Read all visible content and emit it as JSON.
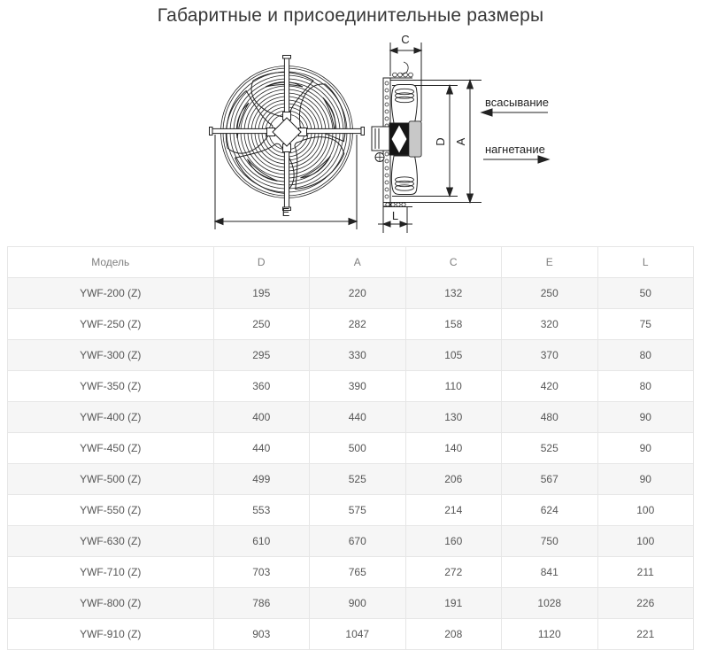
{
  "page": {
    "title": "Габаритные и присоединительные размеры"
  },
  "diagram": {
    "dims": {
      "c": "C",
      "d": "D",
      "a": "A",
      "e": "E",
      "l": "L"
    },
    "flow": {
      "suction": "всасывание",
      "discharge": "нагнетание"
    }
  },
  "table": {
    "headers": [
      "Модель",
      "D",
      "A",
      "C",
      "E",
      "L"
    ],
    "rows": [
      [
        "YWF-200 (Z)",
        "195",
        "220",
        "132",
        "250",
        "50"
      ],
      [
        "YWF-250 (Z)",
        "250",
        "282",
        "158",
        "320",
        "75"
      ],
      [
        "YWF-300 (Z)",
        "295",
        "330",
        "105",
        "370",
        "80"
      ],
      [
        "YWF-350 (Z)",
        "360",
        "390",
        "110",
        "420",
        "80"
      ],
      [
        "YWF-400 (Z)",
        "400",
        "440",
        "130",
        "480",
        "90"
      ],
      [
        "YWF-450 (Z)",
        "440",
        "500",
        "140",
        "525",
        "90"
      ],
      [
        "YWF-500 (Z)",
        "499",
        "525",
        "206",
        "567",
        "90"
      ],
      [
        "YWF-550 (Z)",
        "553",
        "575",
        "214",
        "624",
        "100"
      ],
      [
        "YWF-630 (Z)",
        "610",
        "670",
        "160",
        "750",
        "100"
      ],
      [
        "YWF-710 (Z)",
        "703",
        "765",
        "272",
        "841",
        "211"
      ],
      [
        "YWF-800 (Z)",
        "786",
        "900",
        "191",
        "1028",
        "226"
      ],
      [
        "YWF-910 (Z)",
        "903",
        "1047",
        "208",
        "1120",
        "221"
      ]
    ]
  },
  "colors": {
    "row_stripe": "#f6f6f6",
    "table_border": "#e6e6e6",
    "cell_text": "#565656",
    "header_text": "#7f7f7f",
    "title_text": "#383838",
    "drawing_line": "#222222"
  }
}
